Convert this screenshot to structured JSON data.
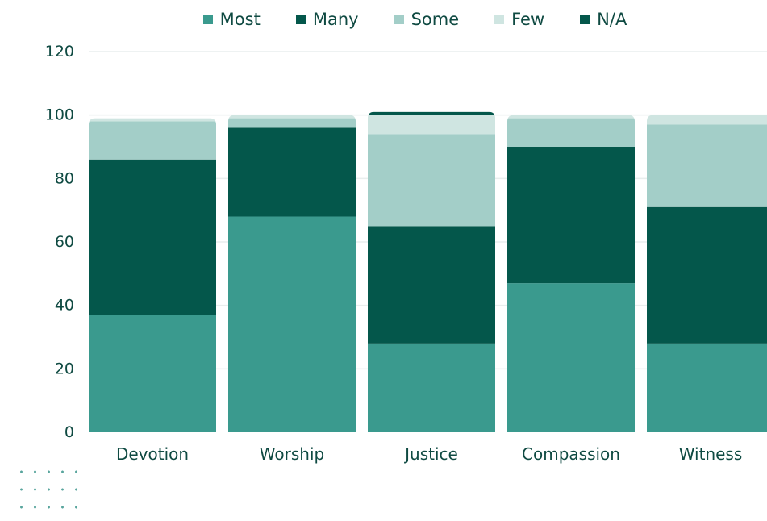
{
  "chart_data": {
    "type": "bar",
    "stacked": true,
    "categories": [
      "Devotion",
      "Worship",
      "Justice",
      "Compassion",
      "Witness"
    ],
    "series": [
      {
        "name": "Most",
        "color": "#3a9a8e",
        "values": [
          37,
          68,
          28,
          47,
          28
        ]
      },
      {
        "name": "Many",
        "color": "#04574b",
        "values": [
          49,
          28,
          37,
          43,
          43
        ]
      },
      {
        "name": "Some",
        "color": "#a3cec8",
        "values": [
          12,
          3,
          29,
          9,
          26
        ]
      },
      {
        "name": "Few",
        "color": "#cfe5e1",
        "values": [
          1,
          1,
          6,
          1,
          3
        ]
      },
      {
        "name": "N/A",
        "color": "#04574b",
        "values": [
          0,
          0,
          1,
          0,
          0
        ]
      }
    ],
    "ylim": [
      0,
      120
    ],
    "yticks": [
      "0",
      "20",
      "40",
      "60",
      "80",
      "100",
      "120"
    ],
    "grid": true,
    "legend_position": "top"
  }
}
